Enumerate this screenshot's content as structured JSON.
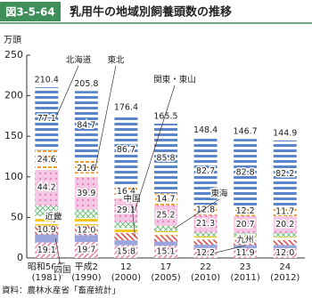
{
  "chart_data": {
    "type": "stacked-bar",
    "figure_label": "図3-5-64",
    "title": "乳用牛の地域別飼養頭数の推移",
    "y_label": "万頭",
    "source": "資料：農林水産省「畜産統計」",
    "categories": [
      "昭和56年",
      "平成2",
      "12",
      "17",
      "22",
      "23",
      "24"
    ],
    "category_sublabels": [
      "(1981)",
      "(1990)",
      "(2000)",
      "(2005)",
      "(2010)",
      "(2011)",
      "(2012)"
    ],
    "ylim": [
      0,
      250
    ],
    "yticks": [
      0,
      50,
      100,
      150,
      200,
      250
    ],
    "series": [
      {
        "name": "九州",
        "color": "#e87fa8",
        "pattern": "diag",
        "values": [
          19.1,
          19.7,
          15.8,
          15.1,
          12.2,
          11.9,
          12.0
        ],
        "value_labels": [
          "19.1",
          "19.7",
          "15.8",
          "15.1",
          "12.2",
          "11.9",
          "12.0"
        ]
      },
      {
        "name": "四国",
        "color": "#9aa6dc",
        "pattern": "solid",
        "values": [
          10.0,
          8.5,
          6.0,
          5.2,
          4.2,
          4.1,
          4.0
        ]
      },
      {
        "name": "中国",
        "color": "#e24b4b",
        "pattern": "rdiag",
        "values": [
          10.9,
          12.0,
          9.0,
          7.8,
          6.3,
          6.2,
          6.1
        ],
        "value_labels": [
          "10.9",
          "12.0",
          null,
          null,
          null,
          null,
          null
        ]
      },
      {
        "name": "近畿",
        "color": "#f3c623",
        "pattern": "hstripe",
        "values": [
          11.5,
          9.0,
          6.0,
          5.0,
          4.0,
          3.9,
          3.9
        ]
      },
      {
        "name": "東海",
        "color": "#6cc07a",
        "pattern": "cross",
        "values": [
          13.0,
          10.4,
          7.4,
          6.7,
          4.9,
          4.9,
          4.8
        ]
      },
      {
        "name": "関東・東山",
        "color": "#e884c4",
        "pattern": "dots",
        "values": [
          44.2,
          39.9,
          29.1,
          25.2,
          21.3,
          20.7,
          20.2
        ],
        "value_labels": [
          "44.2",
          "39.9",
          "29.1",
          "25.2",
          "21.3",
          "20.7",
          "20.2"
        ]
      },
      {
        "name": "東北",
        "color": "#f19a2c",
        "pattern": "dash",
        "values": [
          24.6,
          21.6,
          16.4,
          14.7,
          12.8,
          12.2,
          11.7
        ],
        "value_labels": [
          "24.6",
          "21.6",
          "16.4",
          "14.7",
          "12.8",
          "12.2",
          "11.7"
        ]
      },
      {
        "name": "北海道",
        "color": "#5a86c9",
        "pattern": "hstripe",
        "values": [
          77.1,
          84.7,
          86.7,
          85.8,
          82.7,
          82.8,
          82.2
        ],
        "value_labels": [
          "77.1",
          "84.7",
          "86.7",
          "85.8",
          "82.7",
          "82.8",
          "82.2"
        ]
      }
    ],
    "totals": [
      210.4,
      205.8,
      176.4,
      165.5,
      148.4,
      146.7,
      144.9
    ]
  }
}
